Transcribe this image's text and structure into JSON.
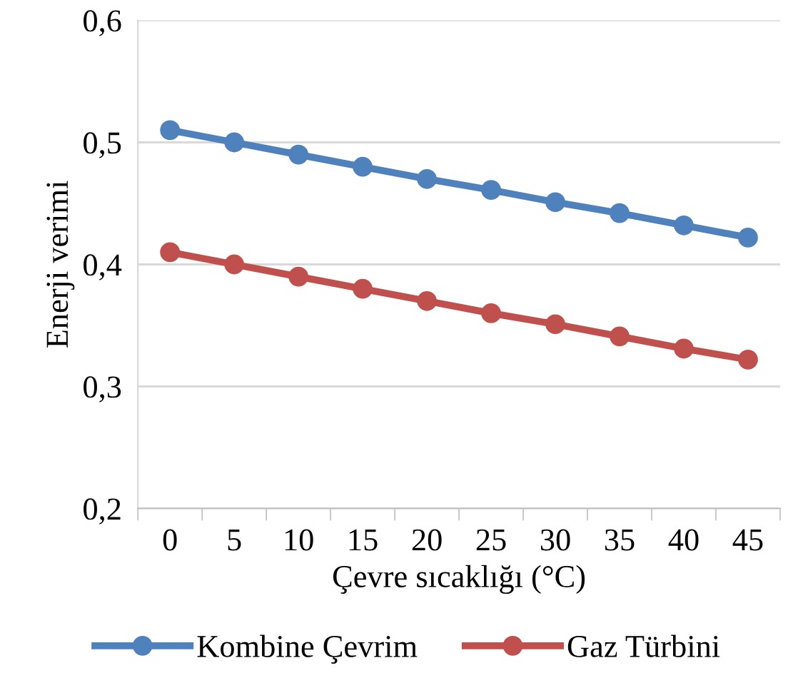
{
  "chart_data": {
    "type": "line",
    "xlabel": "Çevre sıcaklığı (°C)",
    "ylabel": "Enerji verimi",
    "categories": [
      "0",
      "5",
      "10",
      "15",
      "20",
      "25",
      "30",
      "35",
      "40",
      "45"
    ],
    "series": [
      {
        "name": "Kombine Çevrim",
        "color": "#4f81bd",
        "values": [
          0.51,
          0.5,
          0.49,
          0.48,
          0.47,
          0.461,
          0.451,
          0.442,
          0.432,
          0.422
        ]
      },
      {
        "name": "Gaz Türbini",
        "color": "#c0504d",
        "values": [
          0.41,
          0.4,
          0.39,
          0.38,
          0.37,
          0.36,
          0.351,
          0.341,
          0.331,
          0.322
        ]
      }
    ],
    "ylim": [
      0.2,
      0.6
    ],
    "yticks": [
      {
        "value": 0.2,
        "label": "0,2"
      },
      {
        "value": 0.3,
        "label": "0,3"
      },
      {
        "value": 0.4,
        "label": "0,4"
      },
      {
        "value": 0.5,
        "label": "0,5"
      },
      {
        "value": 0.6,
        "label": "0,6"
      }
    ],
    "grid": "y",
    "legend": "bottom",
    "marker": "circle",
    "line_style": "solid"
  }
}
